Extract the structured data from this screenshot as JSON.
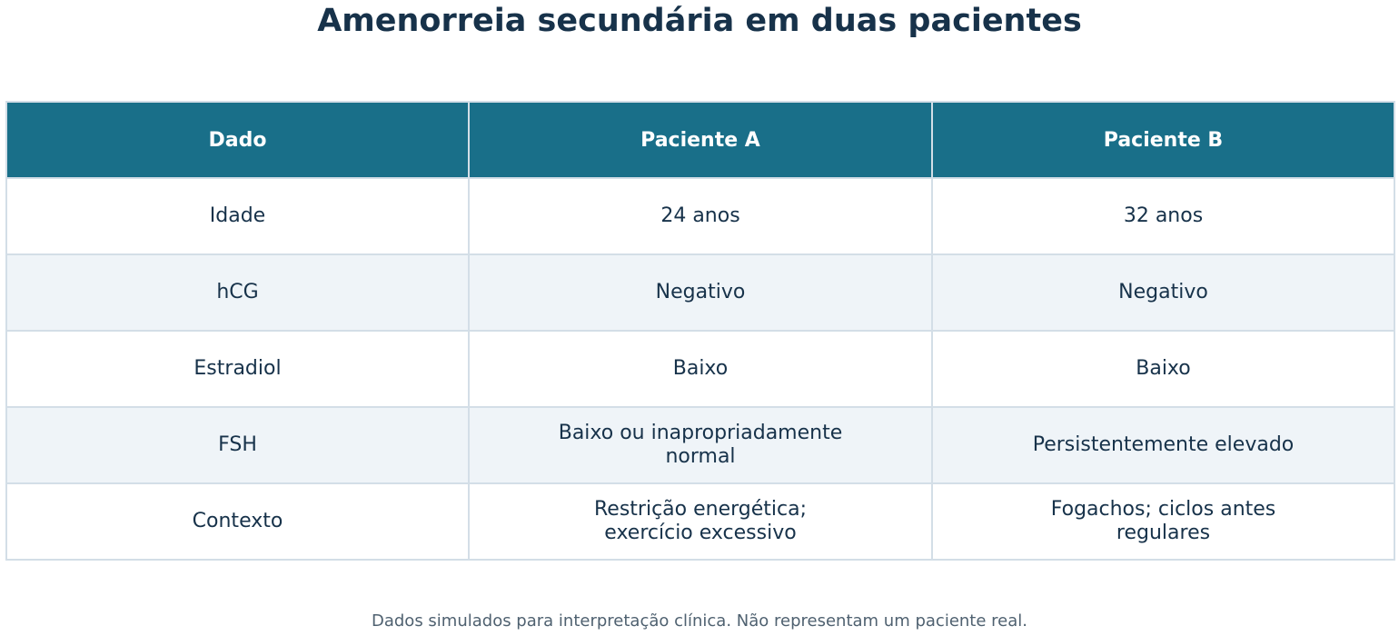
{
  "chart_data": {
    "type": "table",
    "title": "Amenorreia secundária em duas pacientes",
    "columns": [
      "Dado",
      "Paciente A",
      "Paciente B"
    ],
    "rows": [
      [
        "Idade",
        "24 anos",
        "32 anos"
      ],
      [
        "hCG",
        "Negativo",
        "Negativo"
      ],
      [
        "Estradiol",
        "Baixo",
        "Baixo"
      ],
      [
        "FSH",
        "Baixo ou inapropriadamente normal",
        "Persistentemente elevado"
      ],
      [
        "Contexto",
        "Restrição energética; exercício excessivo",
        "Fogachos; ciclos antes regulares"
      ]
    ],
    "footnote": "Dados simulados para interpretação clínica. Não representam um paciente real.",
    "colors": {
      "header_bg": "#196f89",
      "header_text": "#ffffff",
      "text": "#17324a",
      "row_alt": "#eff4f8",
      "border": "#d3dee7"
    }
  }
}
